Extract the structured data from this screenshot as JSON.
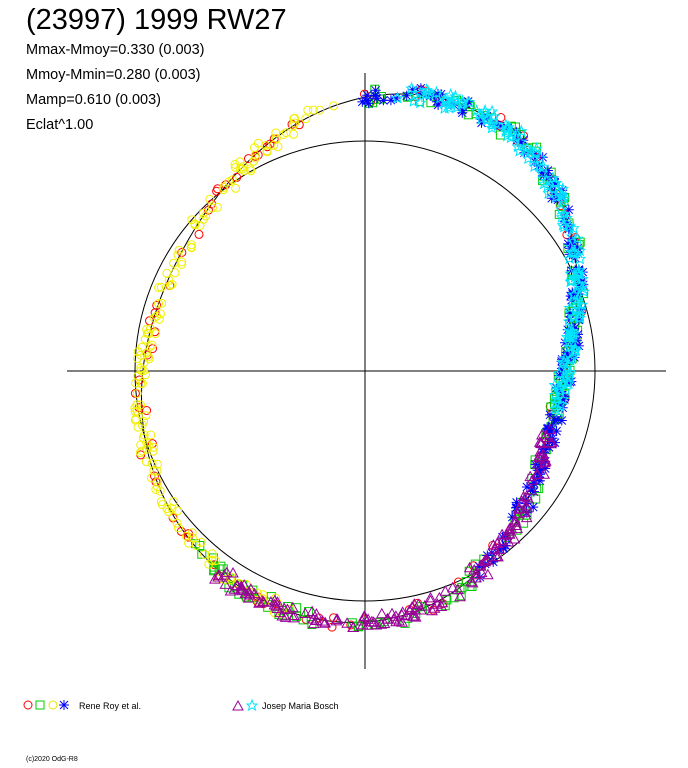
{
  "chart_data": {
    "type": "scatter",
    "title": "(23997) 1999 RW27",
    "stats": [
      "Mmax-Mmoy=0.330 (0.003)",
      "Mmoy-Mmin=0.280 (0.003)",
      "Mamp=0.610 (0.003)",
      "Eclat^1.00"
    ],
    "projection": "polar",
    "grid": false,
    "legend_position": "bottom",
    "legend": [
      {
        "label": "Rene Roy et al.",
        "markers": [
          "circle",
          "square",
          "circle",
          "star4"
        ],
        "colors": [
          "#ff0000",
          "#00cc00",
          "#ffff00",
          "#0000ff"
        ]
      },
      {
        "label": "Josep Maria Bosch",
        "markers": [
          "triangle",
          "star"
        ],
        "colors": [
          "#990099",
          "#00e5ff"
        ]
      }
    ],
    "series": [
      {
        "color": "#ff0000",
        "marker": "circle",
        "phase_range": [
          0.0,
          1.0
        ],
        "sparse": true
      },
      {
        "color": "#00cc00",
        "marker": "square",
        "phase_range": [
          0.0,
          0.63
        ]
      },
      {
        "color": "#ffff00",
        "marker": "circle",
        "phase_range": [
          0.55,
          0.98
        ]
      },
      {
        "color": "#0000ff",
        "marker": "star4",
        "phase_range": [
          0.0,
          0.42
        ]
      },
      {
        "color": "#990099",
        "marker": "triangle",
        "phase_range": [
          0.3,
          0.6
        ]
      },
      {
        "color": "#00e5ff",
        "marker": "star",
        "phase_range": [
          0.02,
          0.28
        ]
      }
    ],
    "footer": "(c)2020 OdG-R8"
  }
}
